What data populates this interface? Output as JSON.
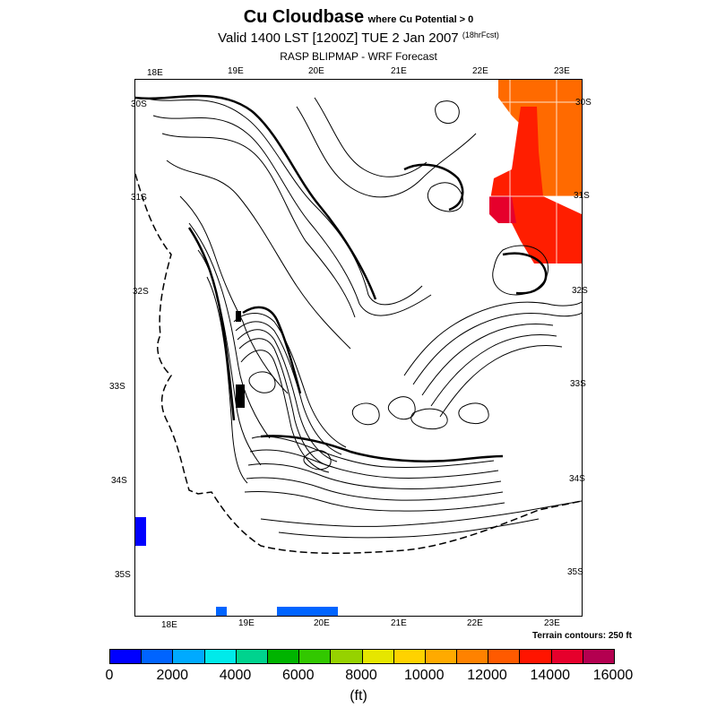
{
  "title": {
    "main": "Cu Cloudbase",
    "note": "where Cu Potential > 0"
  },
  "valid": {
    "text": "Valid 1400 LST [1200Z] TUE 2 Jan 2007",
    "note": "(18hrFcst)"
  },
  "subtitle": "RASP BLIPMAP - WRF Forecast",
  "map": {
    "top_lon_labels": [
      "18E",
      "19E",
      "20E",
      "21E",
      "22E",
      "23E"
    ],
    "bottom_lon_labels": [
      "18E",
      "19E",
      "20E",
      "21E",
      "22E",
      "23E"
    ],
    "left_lat_labels": [
      "30S",
      "31S",
      "32S",
      "33S",
      "34S",
      "35S"
    ],
    "right_lat_labels": [
      "30S",
      "31S",
      "32S",
      "33S",
      "34S",
      "35S"
    ],
    "terrain_note": "Terrain contours: 250 ft"
  },
  "colorbar": {
    "colors": [
      "#0000ff",
      "#0064ff",
      "#00aaff",
      "#00eaea",
      "#00d38e",
      "#00b400",
      "#32c800",
      "#96d200",
      "#e6e600",
      "#ffd200",
      "#ffaa00",
      "#ff8200",
      "#ff5a00",
      "#ff1400",
      "#e6002c",
      "#b40050"
    ],
    "tick_labels": [
      "0",
      "2000",
      "4000",
      "6000",
      "8000",
      "10000",
      "12000",
      "14000",
      "16000"
    ],
    "units": "(ft)"
  },
  "highlights": {
    "orange": "#ff6400",
    "red": "#ff1e00",
    "dark_red": "#e6002c",
    "blue": "#0000ff",
    "medium_blue": "#0064ff"
  }
}
